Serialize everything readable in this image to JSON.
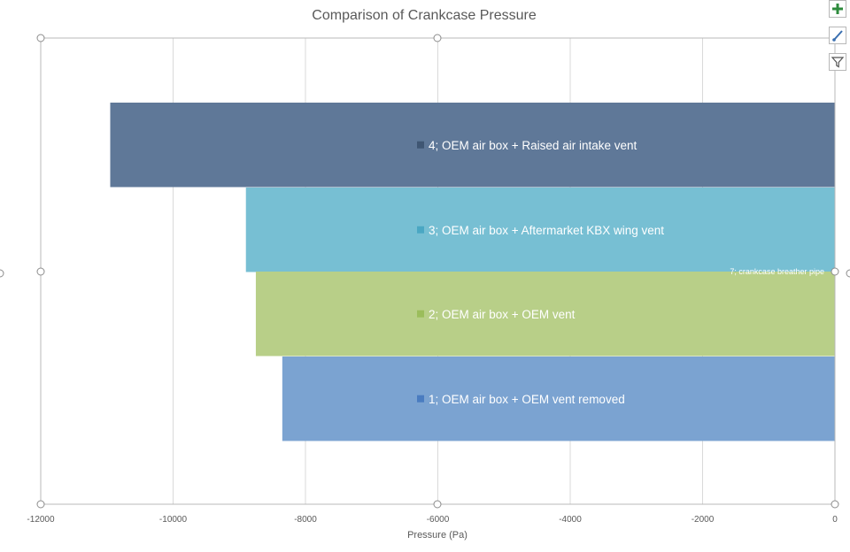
{
  "chart_data": {
    "type": "bar",
    "orientation": "horizontal",
    "title": "Comparison of Crankcase Pressure",
    "xlabel": "Pressure (Pa)",
    "ylabel": "",
    "xlim": [
      -12000,
      0
    ],
    "xticks": [
      -12000,
      -10000,
      -8000,
      -6000,
      -4000,
      -2000,
      0
    ],
    "grid": "vertical",
    "categories": [
      "4; OEM air box + Raised air intake vent",
      "3; OEM air box + Aftermarket KBX wing vent",
      "2; OEM air box + OEM vent",
      "1; OEM air box + OEM vent removed"
    ],
    "values": [
      -10950,
      -8900,
      -8750,
      -8350
    ],
    "colors": [
      "#5f7898",
      "#77bfd3",
      "#b8cf88",
      "#7ba3d1"
    ],
    "legend_colors": [
      "#3f5673",
      "#4aa7c3",
      "#9bbd5b",
      "#4a7cc0"
    ],
    "annotations": [
      "7; crankcase breather pipe"
    ]
  },
  "side_buttons": {
    "add": "chart-elements-icon",
    "style": "brush-icon",
    "filter": "filter-icon"
  }
}
